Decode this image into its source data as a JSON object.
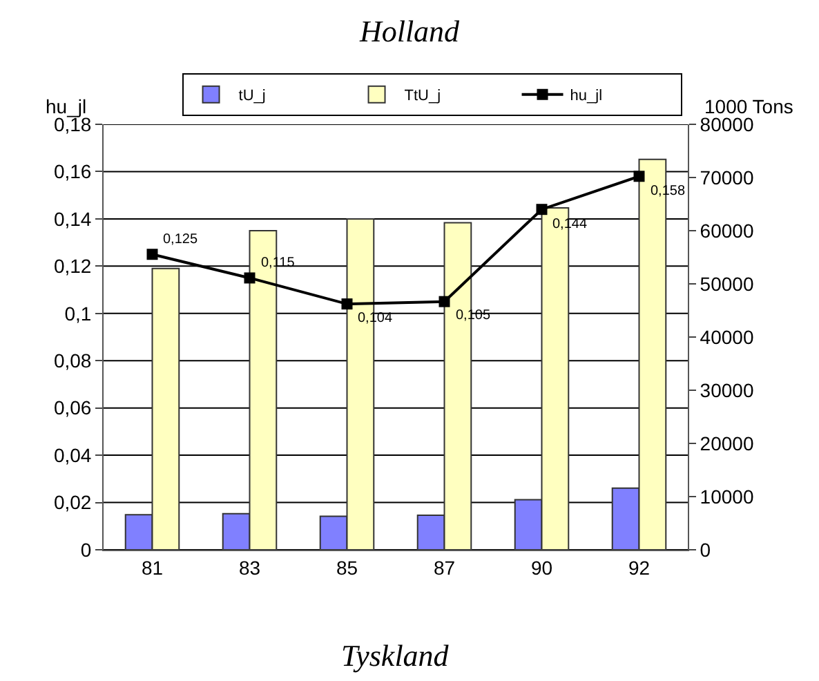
{
  "chart_data": {
    "type": "bar",
    "title": "Holland",
    "ylabel": "hu_jl",
    "y2label": "1000 Tons",
    "categories": [
      "81",
      "83",
      "85",
      "87",
      "90",
      "92"
    ],
    "series": [
      {
        "name": "tU_j",
        "color": "#8080ff",
        "axis": "y2",
        "values": [
          6600,
          6800,
          6300,
          6500,
          9400,
          11600
        ]
      },
      {
        "name": "TtU_j",
        "color": "#ffffc0",
        "axis": "y2",
        "values": [
          52900,
          60000,
          62200,
          61500,
          64300,
          73400
        ]
      },
      {
        "name": "hu_jl",
        "type": "line",
        "color": "#000000",
        "axis": "y",
        "marker": "square",
        "values": [
          0.125,
          0.115,
          0.104,
          0.105,
          0.144,
          0.158
        ],
        "value_labels": [
          "0,125",
          "0,115",
          "0,104",
          "0,105",
          "0,144",
          "0,158"
        ]
      }
    ],
    "ylim": [
      0,
      0.18
    ],
    "yticks": [
      {
        "value": 0,
        "label": "0"
      },
      {
        "value": 0.02,
        "label": "0,02"
      },
      {
        "value": 0.04,
        "label": "0,04"
      },
      {
        "value": 0.06,
        "label": "0,06"
      },
      {
        "value": 0.08,
        "label": "0,08"
      },
      {
        "value": 0.1,
        "label": "0,1"
      },
      {
        "value": 0.12,
        "label": "0,12"
      },
      {
        "value": 0.14,
        "label": "0,14"
      },
      {
        "value": 0.16,
        "label": "0,16"
      },
      {
        "value": 0.18,
        "label": "0,18"
      }
    ],
    "y2lim": [
      0,
      80000
    ],
    "y2ticks": [
      0,
      10000,
      20000,
      30000,
      40000,
      50000,
      60000,
      70000,
      80000
    ],
    "grid": "y",
    "legend": "top right",
    "annotations": [
      "Tyskland"
    ]
  }
}
